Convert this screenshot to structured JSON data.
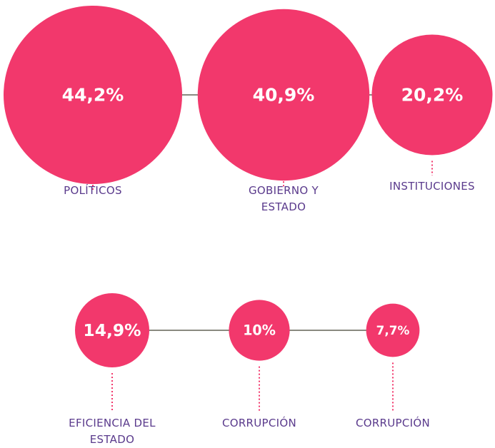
{
  "chart_data": [
    {
      "type": "bubble",
      "categories": [
        "POLÍTICOS",
        "GOBIERNO Y ESTADO",
        "INSTITUCIONES"
      ],
      "values": [
        44.2,
        40.9,
        20.2
      ],
      "value_labels": [
        "44,2%",
        "40,9%",
        "20,2%"
      ],
      "color": "#f2386c"
    },
    {
      "type": "bubble",
      "categories": [
        "EFICIENCIA DEL ESTADO",
        "CORRUPCIÓN",
        "CORRUPCIÓN"
      ],
      "values": [
        14.9,
        10,
        7.7
      ],
      "value_labels": [
        "14,9%",
        "10%",
        "7,7%"
      ],
      "color": "#f2386c"
    }
  ]
}
